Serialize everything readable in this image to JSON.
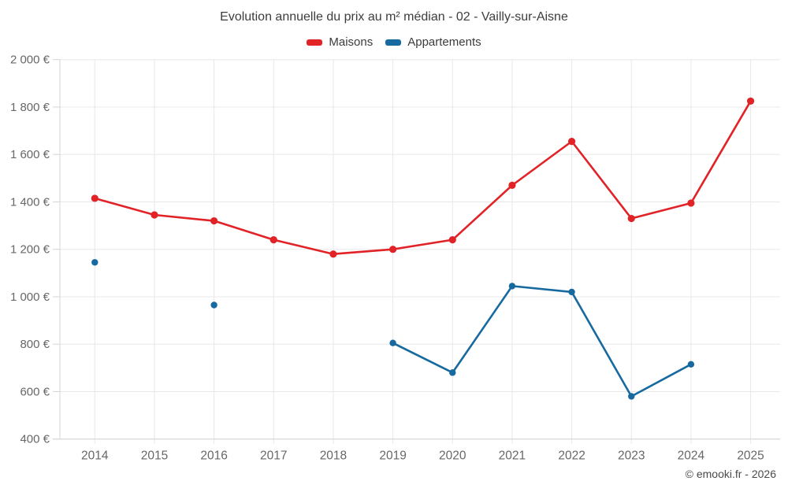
{
  "title": "Evolution annuelle du prix au m² médian - 02 - Vailly-sur-Aisne",
  "legend": [
    {
      "label": "Maisons",
      "color": "#e12328"
    },
    {
      "label": "Appartements",
      "color": "#176a9f"
    }
  ],
  "footer": {
    "credit": "© emooki.fr - 2026"
  },
  "colors": {
    "maisons": "#e12328",
    "appartements": "#176a9f",
    "gridline": "#e8e8e8",
    "axis": "#d4d4d4",
    "axis_text": "#676767"
  },
  "chart_data": {
    "type": "line",
    "title": "Evolution annuelle du prix au m² médian - 02 - Vailly-sur-Aisne",
    "xlabel": "",
    "ylabel": "",
    "x": [
      2014,
      2015,
      2016,
      2017,
      2018,
      2019,
      2020,
      2021,
      2022,
      2023,
      2024,
      2025
    ],
    "series": [
      {
        "name": "Maisons",
        "color": "#e12328",
        "values": [
          1415,
          1345,
          1320,
          1240,
          1180,
          1200,
          1240,
          1470,
          1655,
          1330,
          1395,
          1825
        ]
      },
      {
        "name": "Appartements",
        "color": "#176a9f",
        "values": [
          1145,
          null,
          965,
          null,
          null,
          805,
          680,
          1045,
          1020,
          580,
          715,
          null
        ]
      }
    ],
    "ylim": [
      400,
      2000
    ],
    "ytick_step": 200,
    "ytick_labels": [
      "400 €",
      "600 €",
      "800 €",
      "1 000 €",
      "1 200 €",
      "1 400 €",
      "1 600 €",
      "1 800 €",
      "2 000 €"
    ],
    "xtick_labels": [
      "2014",
      "2015",
      "2016",
      "2017",
      "2018",
      "2019",
      "2020",
      "2021",
      "2022",
      "2023",
      "2024",
      "2025"
    ],
    "grid": true,
    "legend_position": "top",
    "currency": "€"
  }
}
